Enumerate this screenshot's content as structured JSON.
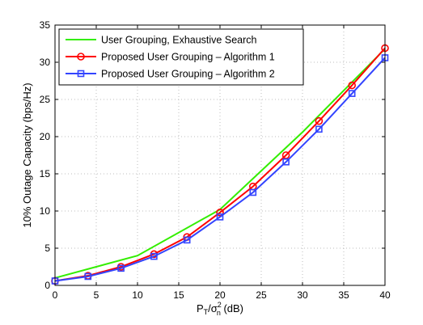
{
  "chart_data": {
    "type": "line",
    "xlabel_parts": {
      "base": "P",
      "sub1": "T",
      "slash": "/σ",
      "sup": "2",
      "sub2": "n",
      "unit": " (dB)"
    },
    "ylabel": "10% Outage Capacity (bps/Hz)",
    "xlim": [
      0,
      40
    ],
    "ylim": [
      0,
      35
    ],
    "xticks": [
      0,
      5,
      10,
      15,
      20,
      25,
      30,
      35,
      40
    ],
    "yticks": [
      0,
      5,
      10,
      15,
      20,
      25,
      30,
      35
    ],
    "grid": true,
    "legend_position": "top-left",
    "series": [
      {
        "name": "User Grouping, Exhaustive Search",
        "color": "#33ee00",
        "marker": "none",
        "x": [
          0,
          10,
          20,
          30,
          40
        ],
        "y": [
          1.0,
          4.0,
          10.2,
          20.6,
          31.8
        ]
      },
      {
        "name": "Proposed User Grouping – Algorithm 1",
        "color": "#ff0000",
        "marker": "circle",
        "x": [
          0,
          4,
          8,
          12,
          16,
          20,
          24,
          28,
          32,
          36,
          40
        ],
        "y": [
          0.6,
          1.3,
          2.5,
          4.2,
          6.5,
          9.8,
          13.3,
          17.5,
          22.1,
          26.9,
          31.9
        ]
      },
      {
        "name": "Proposed User Grouping – Algorithm 2",
        "color": "#3344ff",
        "marker": "square",
        "x": [
          0,
          4,
          8,
          12,
          16,
          20,
          24,
          28,
          32,
          36,
          40
        ],
        "y": [
          0.6,
          1.2,
          2.3,
          3.9,
          6.1,
          9.2,
          12.5,
          16.6,
          21.0,
          25.8,
          30.6
        ]
      }
    ]
  }
}
